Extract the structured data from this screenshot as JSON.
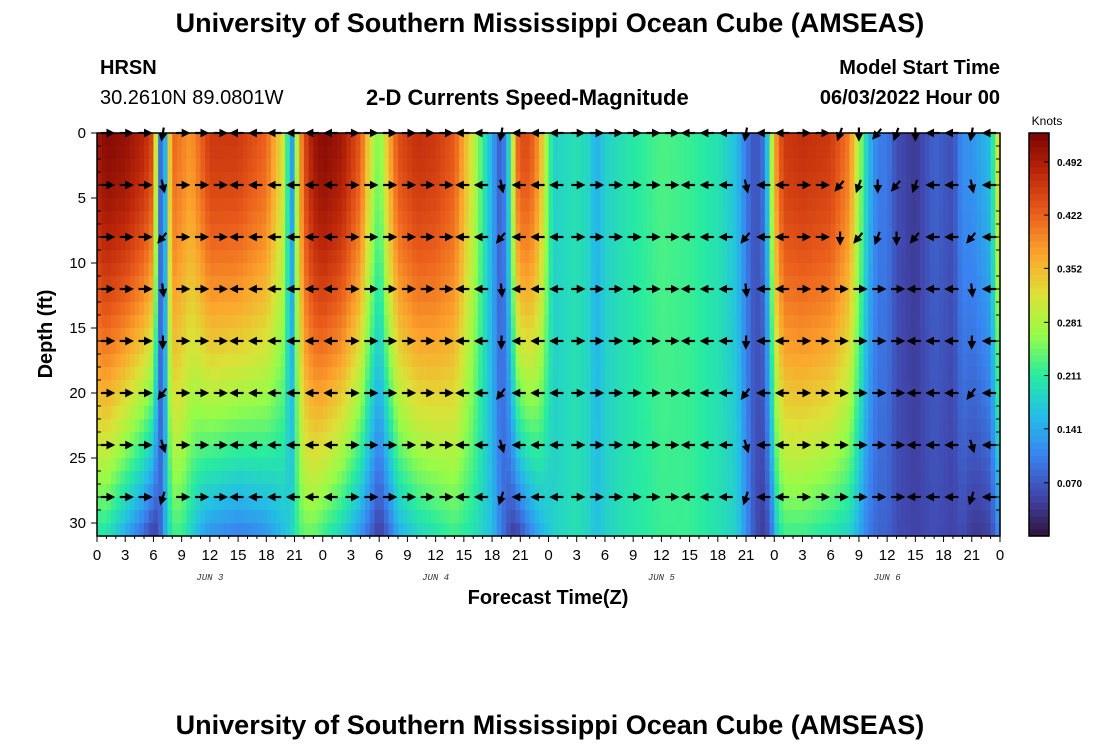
{
  "header": {
    "title": "University of Southern Mississippi Ocean Cube (AMSEAS)",
    "station_name": "HRSN",
    "station_coords": "30.2610N  89.0801W",
    "subtitle": "2-D Currents Speed-Magnitude",
    "model_start_label": "Model Start Time",
    "model_start_value": "06/03/2022 Hour 00"
  },
  "footer": {
    "title": "University of Southern Mississippi Ocean Cube (AMSEAS)"
  },
  "chart_data": {
    "type": "heatmap",
    "title": "2-D Currents Speed-Magnitude",
    "xlabel": "Forecast Time(Z)",
    "ylabel": "Depth (ft)",
    "x_range_hours": [
      0,
      96
    ],
    "y_range_ft": [
      0,
      31
    ],
    "y_inverted": true,
    "x_tick_values": [
      0,
      3,
      6,
      9,
      12,
      15,
      18,
      21,
      24,
      27,
      30,
      33,
      36,
      39,
      42,
      45,
      48,
      51,
      54,
      57,
      60,
      63,
      66,
      69,
      72,
      75,
      78,
      81,
      84,
      87,
      90,
      93,
      96
    ],
    "x_tick_labels": [
      "0",
      "3",
      "6",
      "9",
      "12",
      "15",
      "18",
      "21",
      "0",
      "3",
      "6",
      "9",
      "12",
      "15",
      "18",
      "21",
      "0",
      "3",
      "6",
      "9",
      "12",
      "15",
      "18",
      "21",
      "0",
      "3",
      "6",
      "9",
      "12",
      "15",
      "18",
      "21",
      "0"
    ],
    "y_tick_values": [
      0,
      5,
      10,
      15,
      20,
      25,
      30
    ],
    "y_tick_labels": [
      "0",
      "5",
      "10",
      "15",
      "20",
      "25",
      "30"
    ],
    "date_labels": [
      {
        "label": "JUN 3",
        "hour": 12
      },
      {
        "label": "JUN 4",
        "hour": 36
      },
      {
        "label": "JUN 5",
        "hour": 60
      },
      {
        "label": "JUN 6",
        "hour": 84
      }
    ],
    "colorbar": {
      "units": "Knots",
      "range": [
        0.0,
        0.53
      ],
      "ticks": [
        0.07,
        0.141,
        0.211,
        0.281,
        0.352,
        0.422,
        0.492
      ],
      "tick_labels": [
        "0.070",
        "0.141",
        "0.211",
        "0.281",
        "0.352",
        "0.422",
        "0.492"
      ]
    },
    "speed_profile_hours": [
      0,
      1,
      3,
      5,
      6,
      6.6,
      7,
      7.6,
      8,
      9,
      10,
      11,
      12,
      15,
      18,
      20,
      20.6,
      21,
      21.4,
      22,
      23,
      24,
      26,
      28,
      29,
      30,
      31,
      32,
      34,
      36,
      38,
      40,
      42,
      43,
      44,
      44.5,
      45,
      46,
      47,
      48.5,
      51,
      52.5,
      53,
      54,
      56,
      60,
      63,
      66,
      68,
      69,
      70,
      71,
      71.8,
      72.3,
      73,
      75,
      78,
      80,
      81,
      82,
      83,
      84,
      85,
      87,
      89,
      91,
      92,
      93,
      94,
      95,
      96
    ],
    "speed_profile_surface": [
      0.5,
      0.52,
      0.51,
      0.48,
      0.44,
      0.12,
      0.04,
      0.3,
      0.42,
      0.4,
      0.38,
      0.42,
      0.46,
      0.46,
      0.42,
      0.3,
      0.1,
      0.18,
      0.34,
      0.44,
      0.5,
      0.52,
      0.5,
      0.43,
      0.32,
      0.24,
      0.36,
      0.44,
      0.47,
      0.46,
      0.43,
      0.3,
      0.14,
      0.06,
      0.22,
      0.4,
      0.44,
      0.44,
      0.38,
      0.18,
      0.2,
      0.18,
      0.14,
      0.18,
      0.2,
      0.23,
      0.22,
      0.2,
      0.16,
      0.1,
      0.06,
      0.1,
      0.3,
      0.4,
      0.46,
      0.47,
      0.46,
      0.4,
      0.28,
      0.16,
      0.1,
      0.1,
      0.06,
      0.04,
      0.08,
      0.06,
      0.12,
      0.12,
      0.14,
      0.16,
      0.36
    ],
    "speed_profile_bottom": [
      0.2,
      0.2,
      0.14,
      0.08,
      0.04,
      0.06,
      0.12,
      0.18,
      0.22,
      0.22,
      0.18,
      0.14,
      0.12,
      0.1,
      0.12,
      0.16,
      0.18,
      0.2,
      0.22,
      0.24,
      0.24,
      0.22,
      0.18,
      0.12,
      0.08,
      0.04,
      0.08,
      0.14,
      0.18,
      0.2,
      0.22,
      0.2,
      0.16,
      0.1,
      0.05,
      0.04,
      0.06,
      0.1,
      0.14,
      0.18,
      0.2,
      0.18,
      0.16,
      0.18,
      0.2,
      0.22,
      0.22,
      0.2,
      0.18,
      0.12,
      0.06,
      0.04,
      0.1,
      0.18,
      0.22,
      0.22,
      0.2,
      0.18,
      0.14,
      0.1,
      0.08,
      0.08,
      0.06,
      0.05,
      0.06,
      0.05,
      0.06,
      0.04,
      0.04,
      0.05,
      0.12
    ],
    "arrow_depths_ft": [
      0,
      4,
      8,
      12,
      16,
      20,
      24,
      28
    ],
    "arrow_hours": [
      1,
      3,
      5,
      7,
      9,
      11,
      13,
      15,
      17,
      19,
      21,
      23,
      25,
      27,
      29,
      31,
      33,
      35,
      37,
      39,
      41,
      43,
      45,
      47,
      49,
      51,
      53,
      55,
      57,
      59,
      61,
      63,
      65,
      67,
      69,
      71,
      73,
      75,
      77,
      79,
      81,
      83,
      85,
      87,
      89,
      91,
      93,
      95
    ],
    "arrow_direction_notes": "Arrows point mostly east (right) during hours 0-8, 22-31, 46-54, 70-79 and west (left) between; near-vertical/southward arrows near slack hours (about 7, 43, 69, 93)"
  }
}
